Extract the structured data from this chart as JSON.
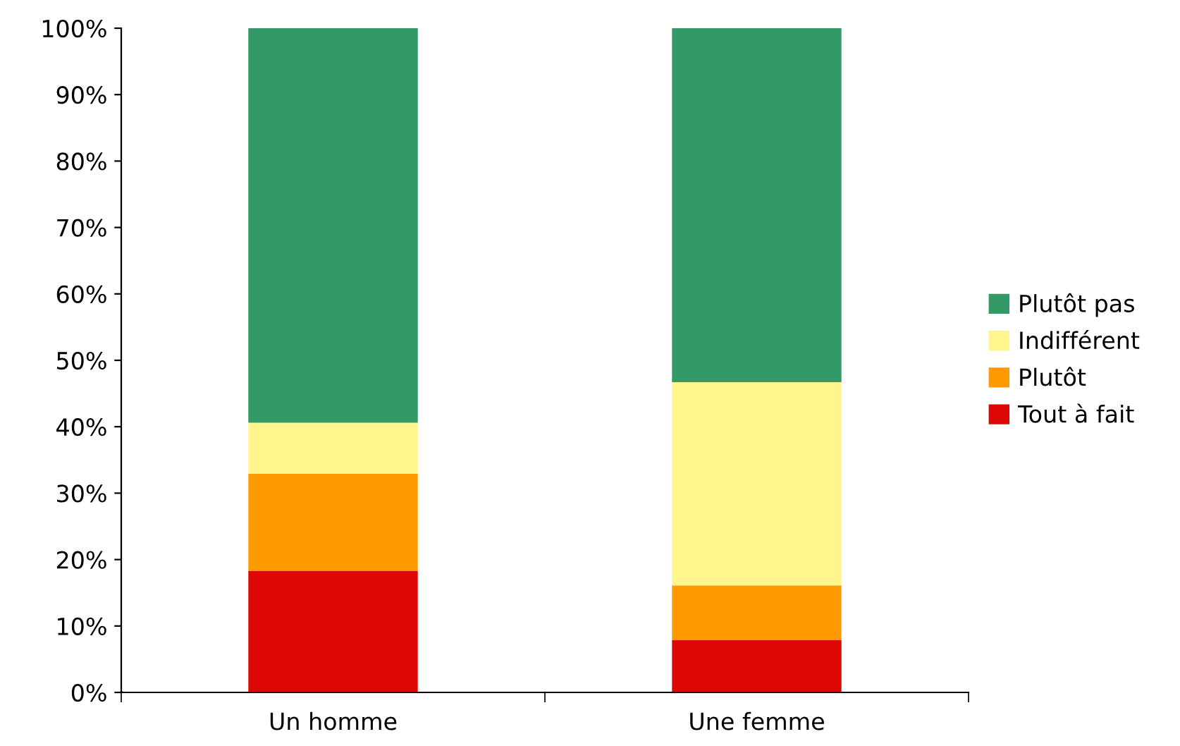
{
  "chart_data": {
    "type": "bar",
    "stacked": true,
    "categories": [
      "Un homme",
      "Une femme"
    ],
    "series": [
      {
        "name": "Tout à fait",
        "color": "#dd0806",
        "values": [
          18.3,
          7.9
        ]
      },
      {
        "name": "Plutôt",
        "color": "#ff9900",
        "values": [
          14.6,
          8.2
        ]
      },
      {
        "name": "Indifférent",
        "color": "#fff58c",
        "values": [
          7.7,
          30.6
        ]
      },
      {
        "name": "Plutôt pas",
        "color": "#339966",
        "values": [
          59.4,
          53.3
        ]
      }
    ],
    "ylim": [
      0,
      100
    ],
    "yticks": [
      {
        "value": 0,
        "label": "0%"
      },
      {
        "value": 10,
        "label": "10%"
      },
      {
        "value": 20,
        "label": "20%"
      },
      {
        "value": 30,
        "label": "30%"
      },
      {
        "value": 40,
        "label": "40%"
      },
      {
        "value": 50,
        "label": "50%"
      },
      {
        "value": 60,
        "label": "60%"
      },
      {
        "value": 70,
        "label": "70%"
      },
      {
        "value": 80,
        "label": "80%"
      },
      {
        "value": 90,
        "label": "90%"
      },
      {
        "value": 100,
        "label": "100%"
      }
    ],
    "grid": false,
    "legend": "right"
  }
}
